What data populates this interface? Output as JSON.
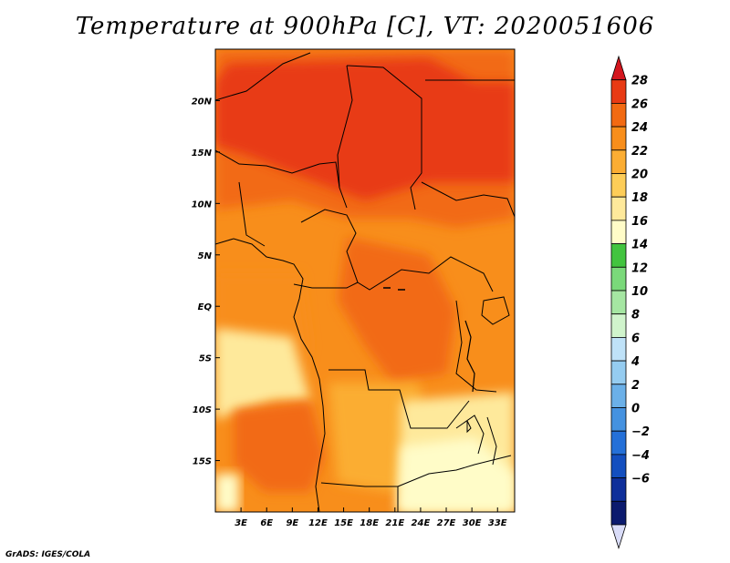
{
  "chart_data": {
    "type": "heatmap",
    "title": "Temperature at 900hPa [C], VT: 2020051606",
    "variable": "Temperature at 900hPa",
    "units": "C",
    "valid_time": "2020051606",
    "x_axis": {
      "range": [
        0,
        35
      ],
      "tick_values": [
        3,
        6,
        9,
        12,
        15,
        18,
        21,
        24,
        27,
        30,
        33
      ],
      "tick_labels": [
        "3E",
        "6E",
        "9E",
        "12E",
        "15E",
        "18E",
        "21E",
        "24E",
        "27E",
        "30E",
        "33E"
      ]
    },
    "y_axis": {
      "range": [
        -20,
        25
      ],
      "tick_values": [
        20,
        15,
        10,
        5,
        0,
        -5,
        -10,
        -15
      ],
      "tick_labels": [
        "20N",
        "15N",
        "10N",
        "5N",
        "EQ",
        "5S",
        "10S",
        "15S"
      ]
    },
    "colorbar": {
      "levels": [
        28,
        26,
        24,
        22,
        20,
        18,
        16,
        14,
        12,
        10,
        8,
        6,
        4,
        2,
        0,
        -2,
        -4,
        -6
      ],
      "level_labels": [
        "28",
        "26",
        "24",
        "22",
        "20",
        "18",
        "16",
        "14",
        "12",
        "10",
        "8",
        "6",
        "4",
        "2",
        "0",
        "−2",
        "−4",
        "−6"
      ],
      "colors_top_to_bottom": [
        "#d4161e",
        "#e83a14",
        "#f26a12",
        "#f88e1b",
        "#fbad33",
        "#fdcd58",
        "#fee99b",
        "#fffcc8",
        "#42c43f",
        "#7ad97a",
        "#a5e6a2",
        "#d0f4cc",
        "#bfe2f8",
        "#95ccf0",
        "#6bb0e8",
        "#4592e0",
        "#2470d8",
        "#134fbf",
        "#0e2f9a",
        "#0b1a6e",
        "#d9dcf8"
      ]
    },
    "color_fields": {
      "hot_north": 27,
      "north_sahel": 25,
      "central_africa": 23,
      "congo_basin": 22,
      "angola_plateau": 20,
      "southern_highlands": 17,
      "zambia_cool_patch": 14,
      "southwest_ocean_warm": 25
    }
  },
  "credit": "GrADS: IGES/COLA"
}
